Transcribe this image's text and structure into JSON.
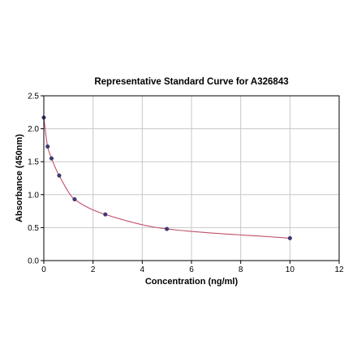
{
  "chart_data": {
    "type": "scatter",
    "title": "Representative Standard Curve for A326843",
    "xlabel": "Concentration (ng/ml)",
    "ylabel": "Absorbance (450nm)",
    "xlim": [
      0,
      12
    ],
    "ylim": [
      0,
      2.5
    ],
    "xticks": [
      0,
      2,
      4,
      6,
      8,
      10,
      12
    ],
    "yticks": [
      0.0,
      0.5,
      1.0,
      1.5,
      2.0,
      2.5
    ],
    "xtick_labels": [
      "0",
      "2",
      "4",
      "6",
      "8",
      "10",
      "12"
    ],
    "ytick_labels": [
      "0.0",
      "0.5",
      "1.0",
      "1.5",
      "2.0",
      "2.5"
    ],
    "grid": true,
    "series": [
      {
        "x": [
          0,
          0.156,
          0.313,
          0.625,
          1.25,
          2.5,
          5,
          10
        ],
        "y": [
          2.17,
          1.73,
          1.55,
          1.29,
          0.93,
          0.7,
          0.48,
          0.34
        ],
        "marker_color": "#3f3a78",
        "fit_line_color": "#c0506a"
      }
    ]
  }
}
